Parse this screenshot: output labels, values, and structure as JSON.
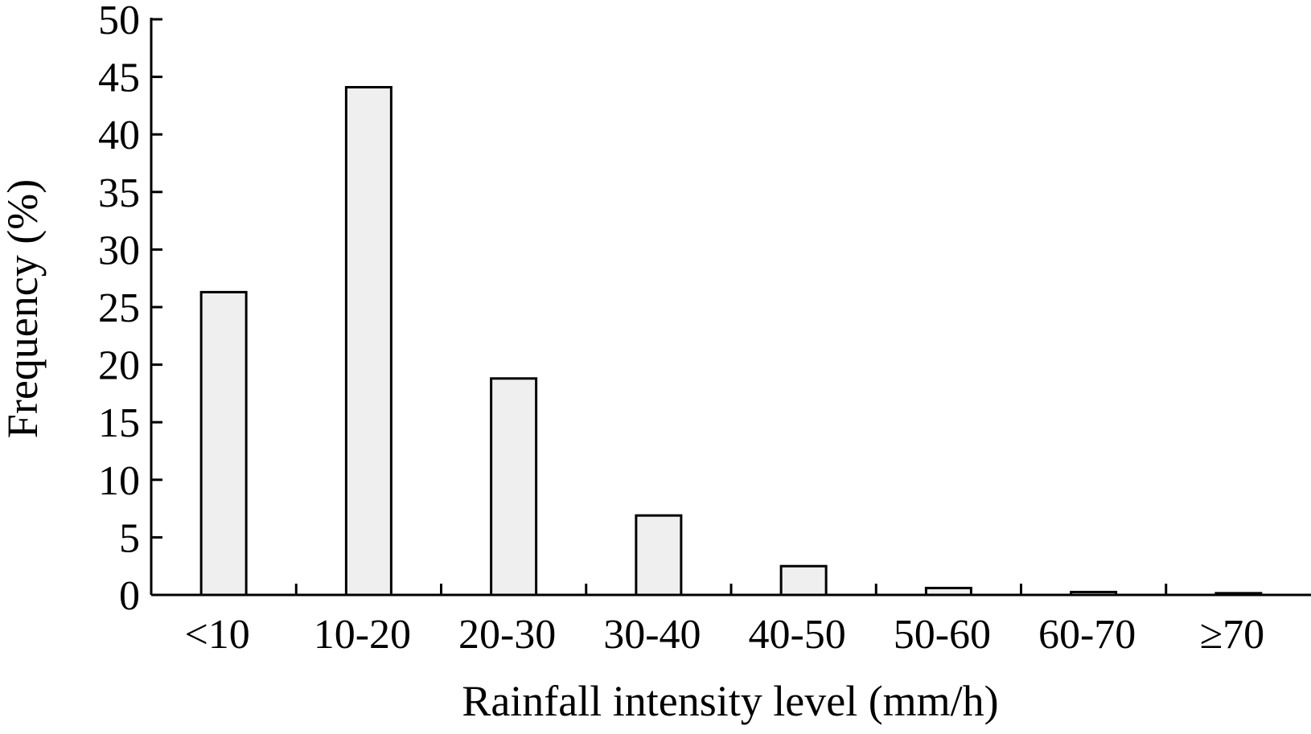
{
  "chart_data": {
    "type": "bar",
    "categories": [
      "<10",
      "10-20",
      "20-30",
      "30-40",
      "40-50",
      "50-60",
      "60-70",
      "≥70"
    ],
    "values": [
      26.3,
      44.1,
      18.8,
      6.9,
      2.5,
      0.6,
      0.25,
      0.15
    ],
    "xlabel": "Rainfall intensity level (mm/h)",
    "ylabel": "Frequency (%)",
    "ylim": [
      0,
      50
    ],
    "yticks": [
      "0",
      "5",
      "10",
      "15",
      "20",
      "25",
      "30",
      "35",
      "40",
      "45",
      "50"
    ],
    "grid": false,
    "bar_fill": "#efefef",
    "bar_stroke": "#000000"
  }
}
